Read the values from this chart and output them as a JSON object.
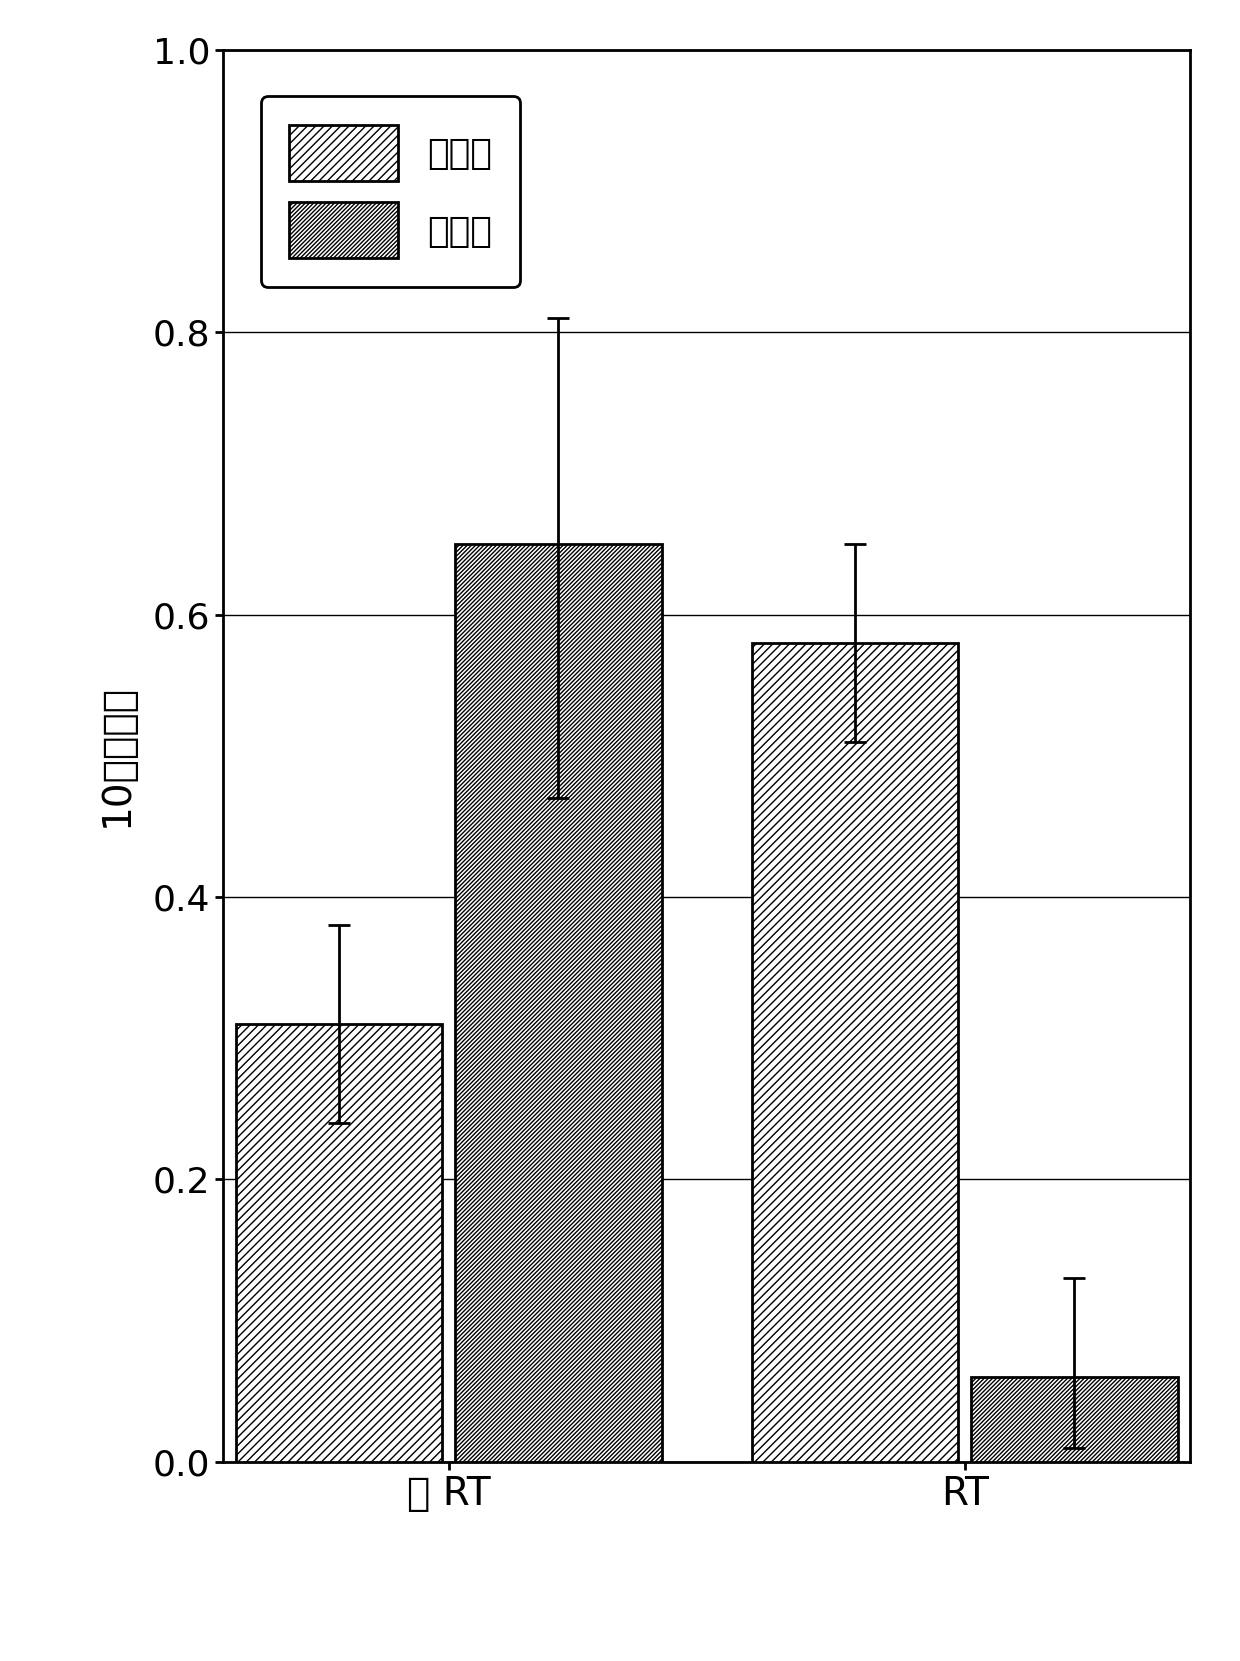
{
  "groups": [
    "无 RT",
    "RT"
  ],
  "series": [
    "低评分",
    "高评分"
  ],
  "values": [
    [
      0.31,
      0.65
    ],
    [
      0.58,
      0.06
    ]
  ],
  "errors_upper": [
    [
      0.07,
      0.16
    ],
    [
      0.07,
      0.07
    ]
  ],
  "errors_lower": [
    [
      0.07,
      0.18
    ],
    [
      0.07,
      0.05
    ]
  ],
  "hatch_low": "////",
  "hatch_high": "////////",
  "bar_facecolor": "#ffffff",
  "bar_edgecolor": "#000000",
  "ylabel": "10年转移率",
  "ylim": [
    0.0,
    1.0
  ],
  "yticks": [
    0.0,
    0.2,
    0.4,
    0.6,
    0.8,
    1.0
  ],
  "legend_labels": [
    "低评分",
    "高评分"
  ],
  "background_color": "#ffffff",
  "bar_width": 0.32,
  "label_fontsize": 28,
  "tick_fontsize": 26,
  "legend_fontsize": 26
}
